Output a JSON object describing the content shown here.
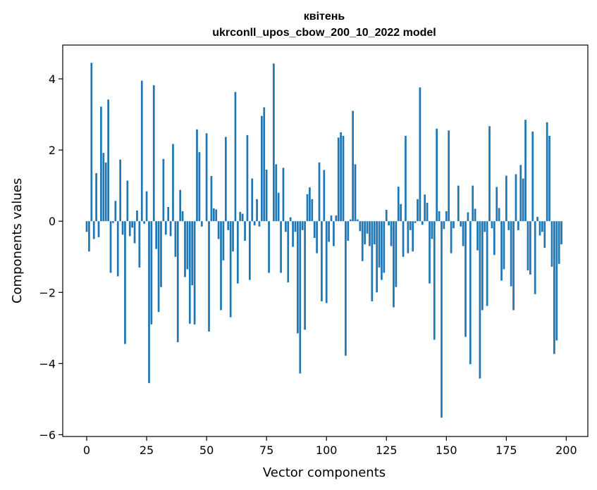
{
  "chart_data": {
    "type": "bar",
    "title": "квітень",
    "subtitle": "ukrconll_upos_cbow_200_10_2022 model",
    "xlabel": "Vector components",
    "ylabel": "Components values",
    "xlim": [
      -10,
      209
    ],
    "ylim": [
      -6.05,
      4.95
    ],
    "xticks": [
      0,
      25,
      50,
      75,
      100,
      125,
      150,
      175,
      200
    ],
    "xtick_labels": [
      "0",
      "25",
      "50",
      "75",
      "100",
      "125",
      "150",
      "175",
      "200"
    ],
    "yticks": [
      -6,
      -4,
      -2,
      0,
      2,
      4
    ],
    "ytick_labels": [
      "−6",
      "−4",
      "−2",
      "0",
      "2",
      "4"
    ],
    "bar_color": "#1f77b4",
    "grid": false,
    "x_start": 0,
    "values": [
      -0.3,
      -0.85,
      4.45,
      -0.5,
      1.35,
      -0.45,
      3.22,
      1.92,
      1.65,
      3.42,
      -1.45,
      -0.05,
      0.57,
      -1.55,
      1.73,
      -0.38,
      -3.45,
      1.14,
      -0.42,
      -0.18,
      -0.62,
      0.3,
      -1.3,
      3.95,
      -0.07,
      0.84,
      -4.55,
      -2.9,
      3.82,
      -0.78,
      -2.55,
      -1.85,
      1.75,
      -0.38,
      0.4,
      -0.42,
      2.17,
      -1.0,
      -3.4,
      0.88,
      0.28,
      -1.57,
      -1.35,
      -2.88,
      -1.8,
      -2.9,
      2.58,
      1.94,
      -0.15,
      0.0,
      2.47,
      -3.1,
      1.27,
      0.36,
      0.33,
      -0.5,
      -2.5,
      -1.1,
      2.37,
      -0.25,
      -2.7,
      -0.85,
      3.63,
      -1.75,
      0.26,
      0.21,
      -0.55,
      2.42,
      -1.65,
      1.2,
      -0.12,
      0.62,
      -0.15,
      2.96,
      3.2,
      1.45,
      -1.45,
      0.0,
      4.43,
      1.6,
      0.8,
      -1.45,
      1.5,
      -0.3,
      -1.72,
      0.11,
      -0.72,
      -0.3,
      -3.15,
      -4.28,
      -0.25,
      -3.05,
      0.76,
      0.95,
      0.62,
      -0.47,
      -0.9,
      1.65,
      -2.25,
      1.44,
      -2.3,
      -0.58,
      0.16,
      -0.7,
      0.16,
      2.35,
      2.5,
      2.4,
      -3.78,
      -0.55,
      0.05,
      3.1,
      1.6,
      0.05,
      -0.28,
      -1.12,
      -0.65,
      -0.35,
      -0.7,
      -2.25,
      -0.65,
      -2.0,
      -1.3,
      -1.65,
      -1.45,
      0.32,
      -0.12,
      -0.7,
      -2.42,
      -1.85,
      0.97,
      0.48,
      -1.0,
      2.4,
      -0.9,
      -0.25,
      -0.85,
      -0.05,
      0.62,
      3.76,
      -0.1,
      0.75,
      0.52,
      -1.75,
      -0.5,
      -3.33,
      2.6,
      0.28,
      -5.52,
      -0.22,
      0.28,
      2.55,
      -0.9,
      -0.2,
      0.0,
      1.0,
      -0.15,
      -0.7,
      -3.25,
      0.25,
      -4.02,
      1.0,
      0.35,
      -0.82,
      -4.42,
      -2.5,
      -0.3,
      -2.38,
      2.67,
      -0.2,
      -0.95,
      0.96,
      0.37,
      -1.67,
      -1.35,
      1.28,
      -0.25,
      -1.83,
      -2.5,
      1.32,
      -0.25,
      1.58,
      1.2,
      2.85,
      -1.38,
      -1.5,
      2.52,
      -2.05,
      0.12,
      -0.4,
      -0.3,
      -0.75,
      2.78,
      2.4,
      -1.28,
      -3.73,
      -3.35,
      -1.2,
      -0.65
    ]
  }
}
